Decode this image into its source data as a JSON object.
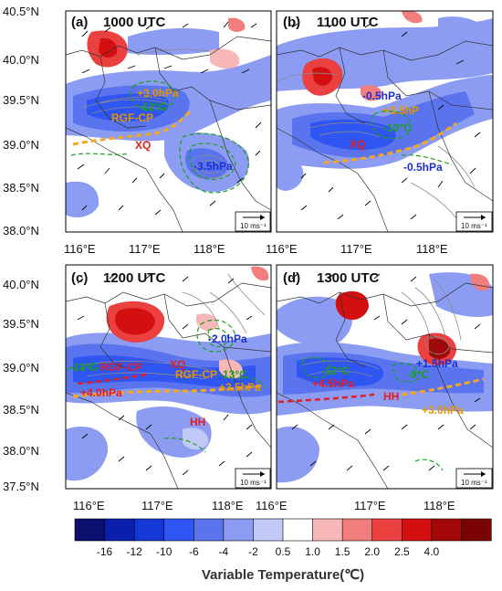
{
  "panels": [
    {
      "id": "a",
      "label": "(a)",
      "time": "1000 UTC",
      "y_ticks": [
        "40.5°N",
        "40.0°N",
        "39.5°N",
        "39.0°N",
        "38.5°N",
        "38.0°N"
      ],
      "x_ticks": [
        "116°E",
        "117°E",
        "118°E"
      ],
      "annotations": [
        {
          "text": "+3.0hPa",
          "color": "#e59400"
        },
        {
          "text": "-12°C",
          "color": "#1aa01a"
        },
        {
          "text": "RGF-CP",
          "color": "#e59400"
        },
        {
          "text": "XQ",
          "color": "#e02020"
        },
        {
          "text": "-3.5hPa",
          "color": "#1a2fd0"
        }
      ],
      "ref_vector": "10 ms⁻¹"
    },
    {
      "id": "b",
      "label": "(b)",
      "time": "1100 UTC",
      "x_ticks": [
        "116°E",
        "117°E",
        "118°E"
      ],
      "annotations": [
        {
          "text": "-0.5hPa",
          "color": "#1a2fd0"
        },
        {
          "text": "+3.5hP",
          "color": "#e59400"
        },
        {
          "text": "-10°C",
          "color": "#1aa01a"
        },
        {
          "text": "XQ",
          "color": "#e02020"
        },
        {
          "text": "-0.5hPa",
          "color": "#1a2fd0"
        }
      ],
      "ref_vector": "10 ms⁻¹"
    },
    {
      "id": "c",
      "label": "(c)",
      "time": "1200 UTC",
      "y_ticks": [
        "40.0°N",
        "39.5°N",
        "39.0°N",
        "38.5°N",
        "38.0°N",
        "37.5°N"
      ],
      "x_ticks": [
        "116°E",
        "117°E",
        "118°E"
      ],
      "annotations": [
        {
          "text": "-2.0hPa",
          "color": "#1a2fd0"
        },
        {
          "text": "-13°C",
          "color": "#1aa01a"
        },
        {
          "text": "RGF-CP",
          "color": "#e02020"
        },
        {
          "text": "XQ",
          "color": "#e02020"
        },
        {
          "text": "RGF-CP",
          "color": "#e59400"
        },
        {
          "text": "-13°C",
          "color": "#1aa01a"
        },
        {
          "text": "+4.0hPa",
          "color": "#e02020"
        },
        {
          "text": "+3.5hPa",
          "color": "#e59400"
        },
        {
          "text": "HH",
          "color": "#e02020"
        }
      ],
      "ref_vector": "10 ms⁻¹"
    },
    {
      "id": "d",
      "label": "(d)",
      "time": "1300 UTC",
      "x_ticks": [
        "116°E",
        "117°E",
        "118°E"
      ],
      "annotations": [
        {
          "text": "-12°C",
          "color": "#1aa01a"
        },
        {
          "text": "+4.5hPa",
          "color": "#e02020"
        },
        {
          "text": "+1.5hPa",
          "color": "#1a2fd0"
        },
        {
          "text": "-9°C",
          "color": "#1aa01a"
        },
        {
          "text": "HH",
          "color": "#e02020"
        },
        {
          "text": "+3.0hPa",
          "color": "#e59400"
        }
      ],
      "ref_vector": "10 ms⁻¹"
    }
  ],
  "colorbar": {
    "title": "Variable Temperature(℃)",
    "tick_labels": [
      "-16",
      "-12",
      "-10",
      "-6",
      "-4",
      "-2",
      "0.5",
      "1.0",
      "1.5",
      "2.0",
      "2.5",
      "4.0"
    ],
    "colors": [
      "#0b0f6e",
      "#0a1fae",
      "#1537d6",
      "#2f55f2",
      "#5a74f0",
      "#8c9cf2",
      "#c1c9f7",
      "#ffffff",
      "#f7b7b7",
      "#f27d7d",
      "#ea4040",
      "#d40f0f",
      "#a50808",
      "#7a0404"
    ]
  }
}
